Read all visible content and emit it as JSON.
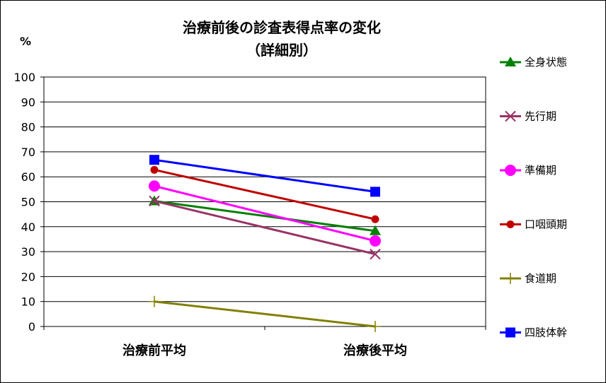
{
  "chart_data": {
    "type": "line",
    "title": "治療前後の診査表得点率の変化",
    "subtitle": "（詳細別）",
    "ylabel": "%",
    "xlabel": "",
    "ylim": [
      0,
      100
    ],
    "yticks": [
      0,
      10,
      20,
      30,
      40,
      50,
      60,
      70,
      80,
      90,
      100
    ],
    "categories": [
      "治療前平均",
      "治療後平均"
    ],
    "grid": true,
    "legend_position": "right",
    "series": [
      {
        "name": "全身状態",
        "values": [
          50.3,
          38.3
        ],
        "color": "#008000",
        "marker": "triangle"
      },
      {
        "name": "先行期",
        "values": [
          50.3,
          29.0
        ],
        "color": "#993366",
        "marker": "x"
      },
      {
        "name": "準備期",
        "values": [
          56.3,
          34.3
        ],
        "color": "#ff00ff",
        "marker": "circle"
      },
      {
        "name": "口咽頭期",
        "values": [
          62.8,
          43.0
        ],
        "color": "#c00000",
        "marker": "dot"
      },
      {
        "name": "食道期",
        "values": [
          10.0,
          0.0
        ],
        "color": "#808000",
        "marker": "plus"
      },
      {
        "name": "四肢体幹",
        "values": [
          66.8,
          54.0
        ],
        "color": "#0000ff",
        "marker": "square"
      }
    ]
  }
}
